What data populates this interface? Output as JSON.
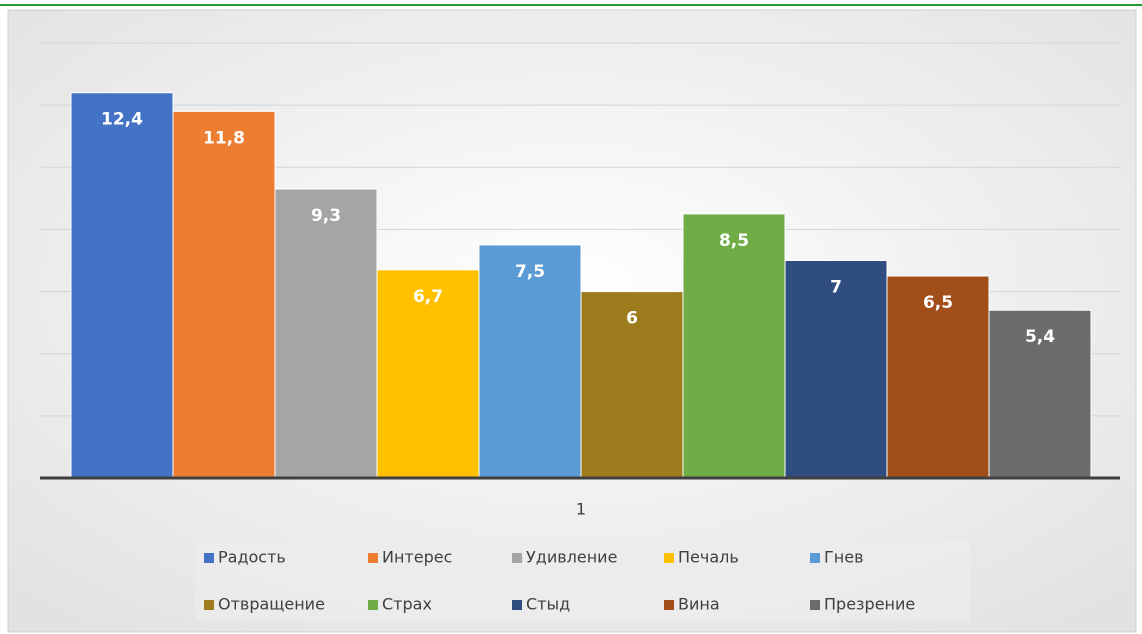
{
  "chart_data": {
    "type": "bar",
    "categories": [
      "1"
    ],
    "series": [
      {
        "name": "Радость",
        "color": "#4472c4",
        "values": [
          12.4
        ],
        "value_labels": [
          "12,4"
        ]
      },
      {
        "name": "Интерес",
        "color": "#ed7d31",
        "values": [
          11.8
        ],
        "value_labels": [
          "11,8"
        ]
      },
      {
        "name": "Удивление",
        "color": "#a5a5a5",
        "values": [
          9.3
        ],
        "value_labels": [
          "9,3"
        ]
      },
      {
        "name": "Печаль",
        "color": "#ffc000",
        "values": [
          6.7
        ],
        "value_labels": [
          "6,7"
        ]
      },
      {
        "name": "Гнев",
        "color": "#5b9bd5",
        "values": [
          7.5
        ],
        "value_labels": [
          "7,5"
        ]
      },
      {
        "name": "Отвращение",
        "color": "#9e7b1c",
        "values": [
          6
        ]
      },
      {
        "name": "Страх",
        "color": "#70ad47",
        "values": [
          8.5
        ],
        "value_labels": [
          "8,5"
        ]
      },
      {
        "name": "Стыд",
        "color": "#2f4d80",
        "values": [
          7
        ]
      },
      {
        "name": "Вина",
        "color": "#a24e1b",
        "values": [
          6.5
        ],
        "value_labels": [
          "6,5"
        ]
      },
      {
        "name": "Презрение",
        "color": "#6b6b6b",
        "values": [
          5.4
        ],
        "value_labels": [
          "5,4"
        ]
      }
    ],
    "ylim": [
      0,
      14
    ],
    "yticks": [
      0,
      2,
      4,
      6,
      8,
      10,
      12,
      14
    ],
    "grid": true
  }
}
